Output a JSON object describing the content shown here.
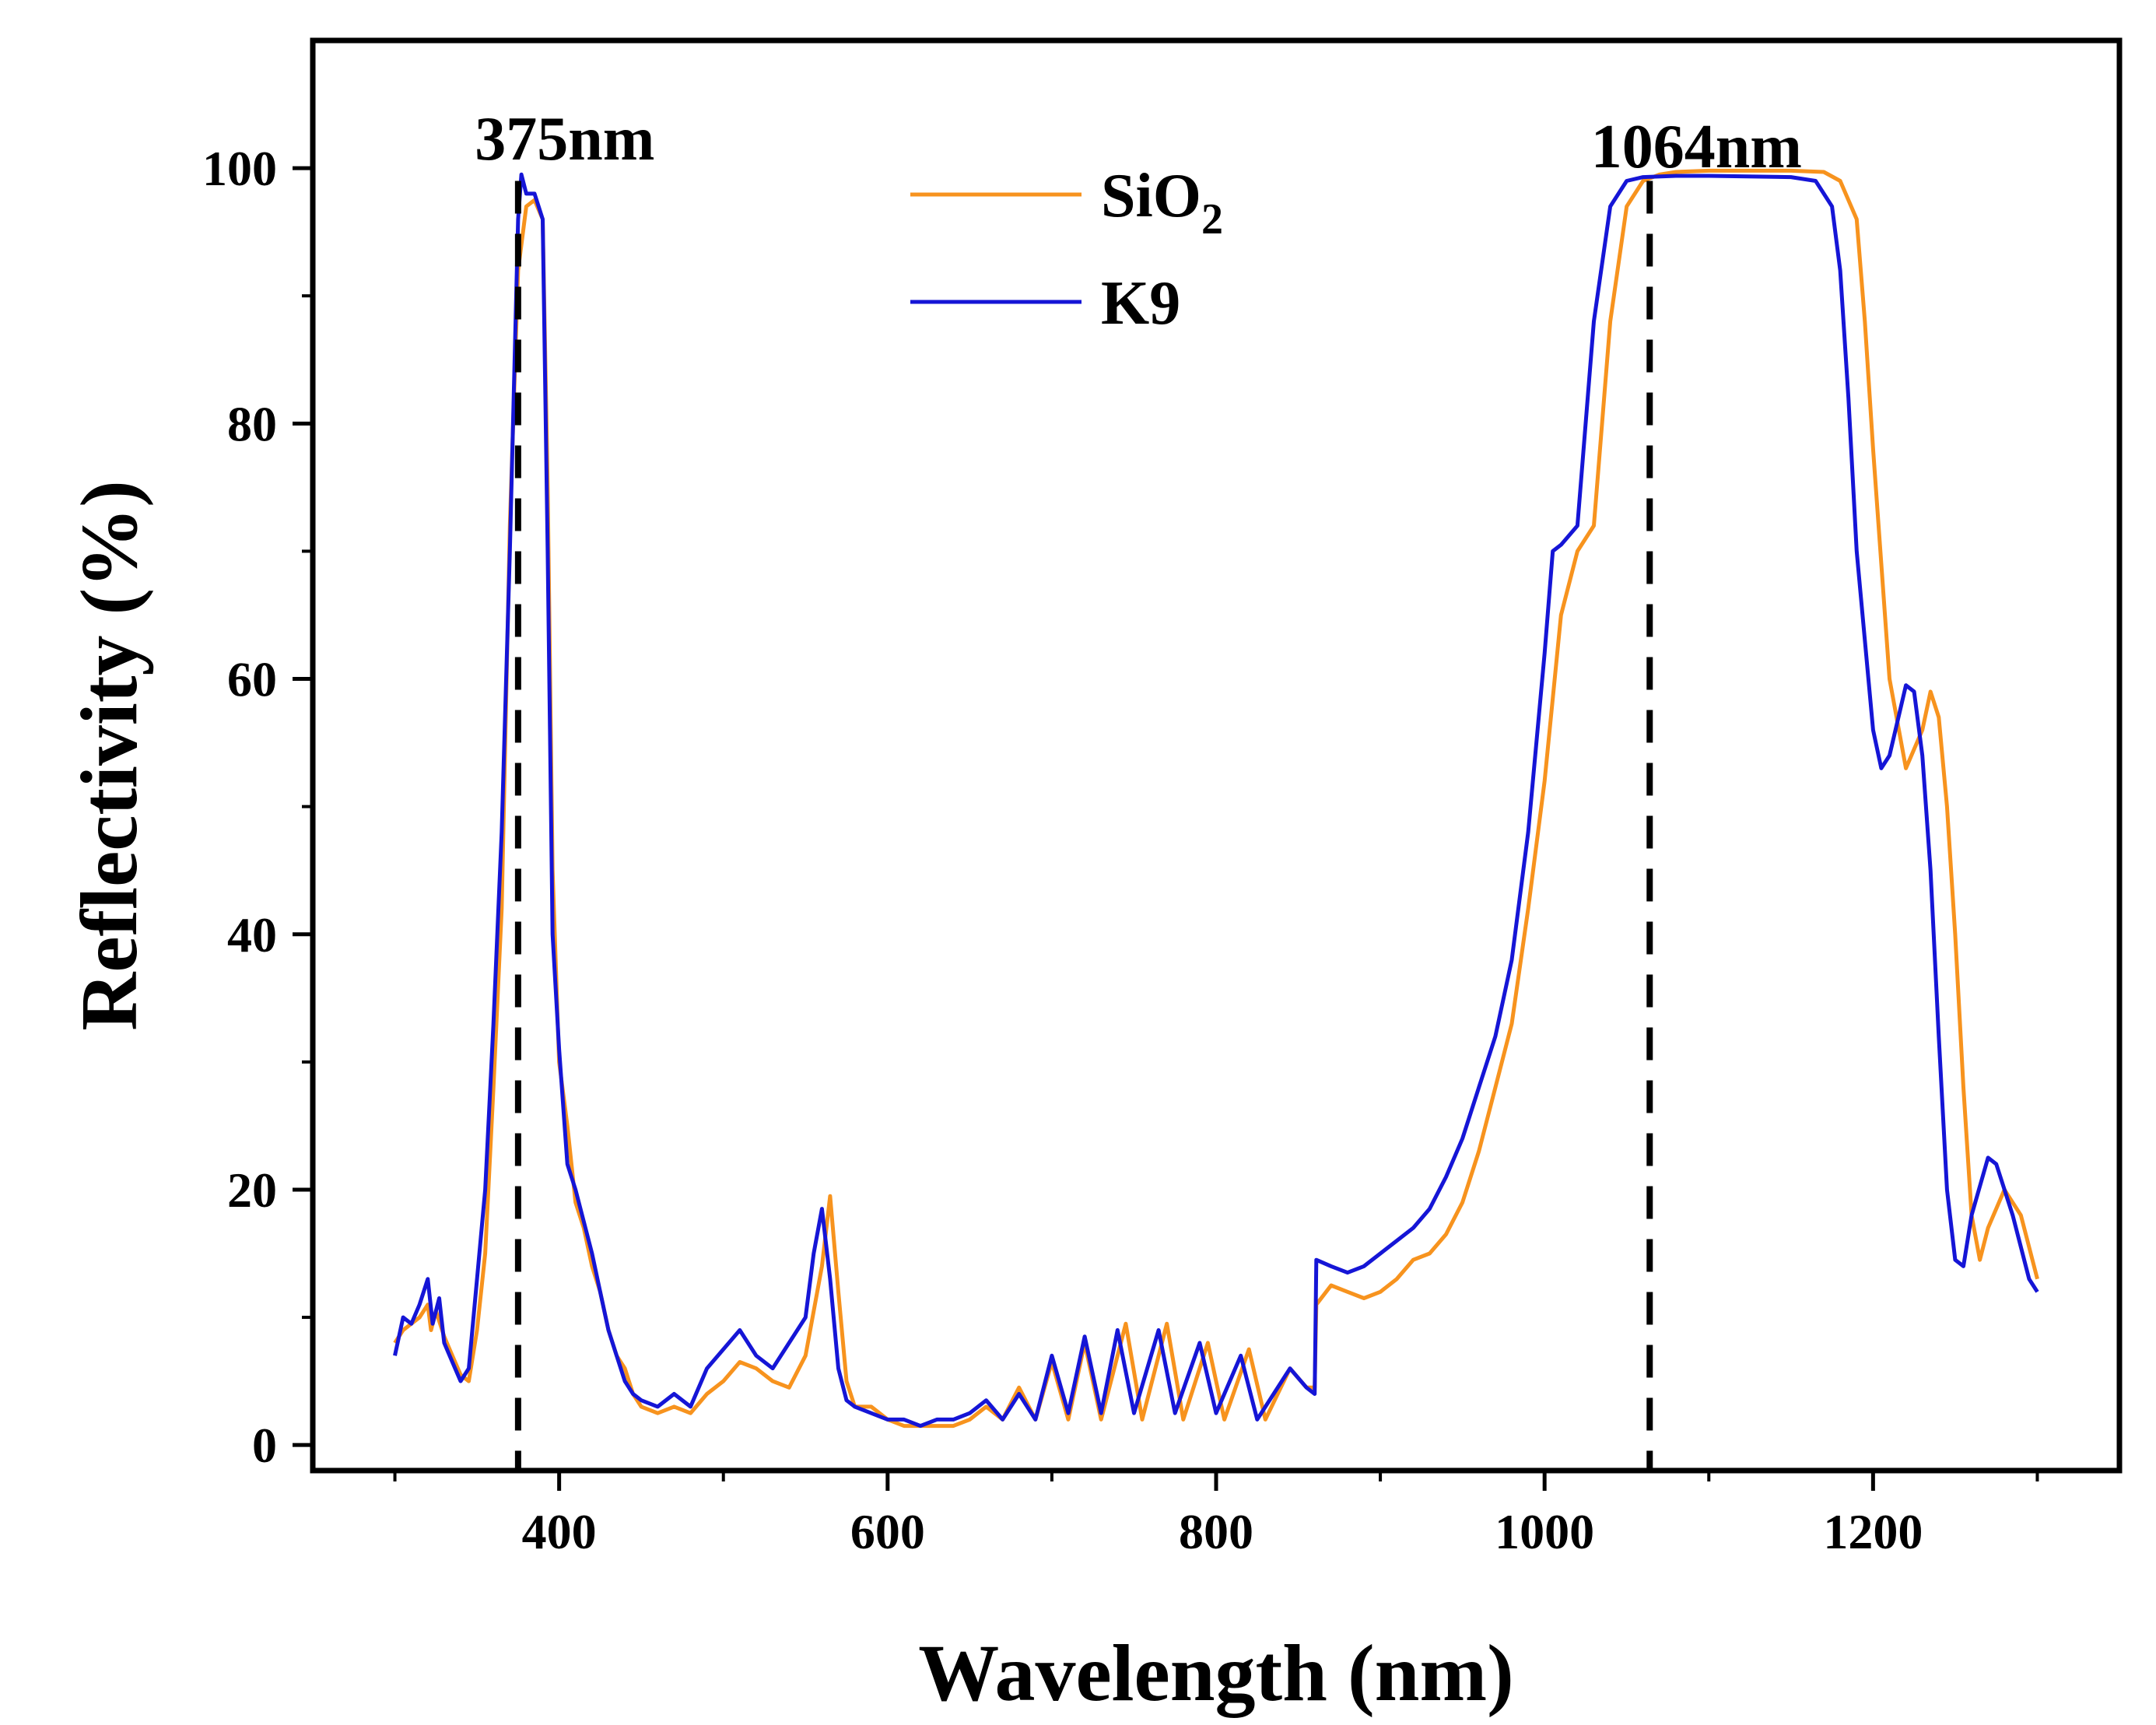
{
  "chart_data": {
    "type": "line",
    "xlabel": "Wavelength (nm)",
    "ylabel": "Reflectivity (%)",
    "xlim": [
      250,
      1350
    ],
    "ylim": [
      -2,
      110
    ],
    "xticks": [
      400,
      600,
      800,
      1000,
      1200
    ],
    "xtick_labels": [
      "400",
      "600",
      "800",
      "1000",
      "1200"
    ],
    "yticks": [
      0,
      20,
      40,
      60,
      80,
      100
    ],
    "ytick_labels": [
      "0",
      "20",
      "40",
      "60",
      "80",
      "100"
    ],
    "grid": false,
    "legend_position": "top-center",
    "annotations": [
      {
        "text": "375nm",
        "x": 375
      },
      {
        "text": "1064nm",
        "x": 1064
      }
    ],
    "series": [
      {
        "name": "SiO2",
        "legend_label": "SiO",
        "legend_subscript": "2",
        "color": "#F7931E",
        "points": [
          [
            300,
            8
          ],
          [
            305,
            9
          ],
          [
            310,
            9.5
          ],
          [
            315,
            10
          ],
          [
            320,
            11
          ],
          [
            322,
            9
          ],
          [
            325,
            10.5
          ],
          [
            330,
            8.5
          ],
          [
            335,
            7
          ],
          [
            340,
            5.5
          ],
          [
            345,
            5
          ],
          [
            350,
            9
          ],
          [
            355,
            15
          ],
          [
            360,
            28
          ],
          [
            365,
            42
          ],
          [
            370,
            72
          ],
          [
            375,
            92
          ],
          [
            380,
            97
          ],
          [
            385,
            97.5
          ],
          [
            390,
            96
          ],
          [
            393,
            75
          ],
          [
            396,
            45
          ],
          [
            400,
            30
          ],
          [
            405,
            25
          ],
          [
            410,
            19
          ],
          [
            415,
            17
          ],
          [
            420,
            14
          ],
          [
            425,
            12
          ],
          [
            430,
            9
          ],
          [
            435,
            7
          ],
          [
            440,
            6
          ],
          [
            445,
            4
          ],
          [
            450,
            3
          ],
          [
            460,
            2.5
          ],
          [
            470,
            3
          ],
          [
            480,
            2.5
          ],
          [
            490,
            4
          ],
          [
            500,
            5
          ],
          [
            510,
            6.5
          ],
          [
            520,
            6
          ],
          [
            530,
            5
          ],
          [
            540,
            4.5
          ],
          [
            550,
            7
          ],
          [
            560,
            14
          ],
          [
            565,
            19.5
          ],
          [
            570,
            12
          ],
          [
            575,
            5
          ],
          [
            580,
            3
          ],
          [
            590,
            3
          ],
          [
            600,
            2
          ],
          [
            610,
            1.5
          ],
          [
            620,
            1.5
          ],
          [
            630,
            1.5
          ],
          [
            640,
            1.5
          ],
          [
            650,
            2
          ],
          [
            660,
            3
          ],
          [
            670,
            2
          ],
          [
            680,
            4.5
          ],
          [
            690,
            2
          ],
          [
            700,
            6.5
          ],
          [
            710,
            2
          ],
          [
            720,
            8
          ],
          [
            730,
            2
          ],
          [
            745,
            9.5
          ],
          [
            755,
            2
          ],
          [
            770,
            9.5
          ],
          [
            780,
            2
          ],
          [
            795,
            8
          ],
          [
            805,
            2
          ],
          [
            820,
            7.5
          ],
          [
            830,
            2
          ],
          [
            845,
            6
          ],
          [
            855,
            4.5
          ],
          [
            860,
            4.5
          ],
          [
            861,
            11
          ],
          [
            870,
            12.5
          ],
          [
            880,
            12
          ],
          [
            890,
            11.5
          ],
          [
            900,
            12
          ],
          [
            910,
            13
          ],
          [
            920,
            14.5
          ],
          [
            930,
            15
          ],
          [
            940,
            16.5
          ],
          [
            950,
            19
          ],
          [
            960,
            23
          ],
          [
            970,
            28
          ],
          [
            980,
            33
          ],
          [
            990,
            42
          ],
          [
            1000,
            52
          ],
          [
            1010,
            65
          ],
          [
            1020,
            70
          ],
          [
            1030,
            72
          ],
          [
            1040,
            88
          ],
          [
            1050,
            97
          ],
          [
            1060,
            99
          ],
          [
            1070,
            99.5
          ],
          [
            1080,
            99.7
          ],
          [
            1100,
            99.8
          ],
          [
            1150,
            99.8
          ],
          [
            1170,
            99.7
          ],
          [
            1180,
            99
          ],
          [
            1190,
            96
          ],
          [
            1195,
            88
          ],
          [
            1200,
            78
          ],
          [
            1210,
            60
          ],
          [
            1220,
            53
          ],
          [
            1230,
            56
          ],
          [
            1235,
            59
          ],
          [
            1240,
            57
          ],
          [
            1245,
            50
          ],
          [
            1250,
            40
          ],
          [
            1255,
            28
          ],
          [
            1260,
            18
          ],
          [
            1265,
            14.5
          ],
          [
            1270,
            17
          ],
          [
            1280,
            20
          ],
          [
            1290,
            18
          ],
          [
            1300,
            13
          ]
        ]
      },
      {
        "name": "K9",
        "legend_label": "K9",
        "legend_subscript": "",
        "color": "#1515D6",
        "points": [
          [
            300,
            7
          ],
          [
            305,
            10
          ],
          [
            310,
            9.5
          ],
          [
            315,
            11
          ],
          [
            320,
            13
          ],
          [
            323,
            9.5
          ],
          [
            327,
            11.5
          ],
          [
            330,
            8
          ],
          [
            335,
            6.5
          ],
          [
            340,
            5
          ],
          [
            345,
            6
          ],
          [
            350,
            13
          ],
          [
            355,
            20
          ],
          [
            360,
            33
          ],
          [
            365,
            48
          ],
          [
            370,
            70
          ],
          [
            375,
            96
          ],
          [
            377,
            99.5
          ],
          [
            380,
            98
          ],
          [
            385,
            98
          ],
          [
            390,
            96
          ],
          [
            393,
            70
          ],
          [
            396,
            40
          ],
          [
            400,
            31
          ],
          [
            405,
            22
          ],
          [
            410,
            20
          ],
          [
            415,
            17.5
          ],
          [
            420,
            15
          ],
          [
            425,
            12
          ],
          [
            430,
            9
          ],
          [
            435,
            7
          ],
          [
            440,
            5
          ],
          [
            445,
            4
          ],
          [
            450,
            3.5
          ],
          [
            460,
            3
          ],
          [
            470,
            4
          ],
          [
            480,
            3
          ],
          [
            490,
            6
          ],
          [
            500,
            7.5
          ],
          [
            510,
            9
          ],
          [
            520,
            7
          ],
          [
            530,
            6
          ],
          [
            540,
            8
          ],
          [
            550,
            10
          ],
          [
            555,
            15
          ],
          [
            560,
            18.5
          ],
          [
            565,
            13
          ],
          [
            570,
            6
          ],
          [
            575,
            3.5
          ],
          [
            580,
            3
          ],
          [
            590,
            2.5
          ],
          [
            600,
            2
          ],
          [
            610,
            2
          ],
          [
            620,
            1.5
          ],
          [
            630,
            2
          ],
          [
            640,
            2
          ],
          [
            650,
            2.5
          ],
          [
            660,
            3.5
          ],
          [
            670,
            2
          ],
          [
            680,
            4
          ],
          [
            690,
            2
          ],
          [
            700,
            7
          ],
          [
            710,
            2.5
          ],
          [
            720,
            8.5
          ],
          [
            730,
            2.5
          ],
          [
            740,
            9
          ],
          [
            750,
            2.5
          ],
          [
            765,
            9
          ],
          [
            775,
            2.5
          ],
          [
            790,
            8
          ],
          [
            800,
            2.5
          ],
          [
            815,
            7
          ],
          [
            825,
            2
          ],
          [
            845,
            6
          ],
          [
            855,
            4.5
          ],
          [
            860,
            4
          ],
          [
            861,
            14.5
          ],
          [
            870,
            14
          ],
          [
            880,
            13.5
          ],
          [
            890,
            14
          ],
          [
            900,
            15
          ],
          [
            910,
            16
          ],
          [
            920,
            17
          ],
          [
            930,
            18.5
          ],
          [
            940,
            21
          ],
          [
            950,
            24
          ],
          [
            960,
            28
          ],
          [
            970,
            32
          ],
          [
            980,
            38
          ],
          [
            990,
            48
          ],
          [
            1000,
            62
          ],
          [
            1005,
            70
          ],
          [
            1010,
            70.5
          ],
          [
            1020,
            72
          ],
          [
            1030,
            88
          ],
          [
            1040,
            97
          ],
          [
            1050,
            99
          ],
          [
            1060,
            99.3
          ],
          [
            1080,
            99.4
          ],
          [
            1100,
            99.4
          ],
          [
            1150,
            99.3
          ],
          [
            1165,
            99
          ],
          [
            1175,
            97
          ],
          [
            1180,
            92
          ],
          [
            1185,
            82
          ],
          [
            1190,
            70
          ],
          [
            1200,
            56
          ],
          [
            1205,
            53
          ],
          [
            1210,
            54
          ],
          [
            1220,
            59.5
          ],
          [
            1225,
            59
          ],
          [
            1230,
            54
          ],
          [
            1235,
            45
          ],
          [
            1240,
            32
          ],
          [
            1245,
            20
          ],
          [
            1250,
            14.5
          ],
          [
            1255,
            14
          ],
          [
            1260,
            18
          ],
          [
            1270,
            22.5
          ],
          [
            1275,
            22
          ],
          [
            1285,
            18
          ],
          [
            1295,
            13
          ],
          [
            1300,
            12
          ]
        ]
      }
    ]
  }
}
